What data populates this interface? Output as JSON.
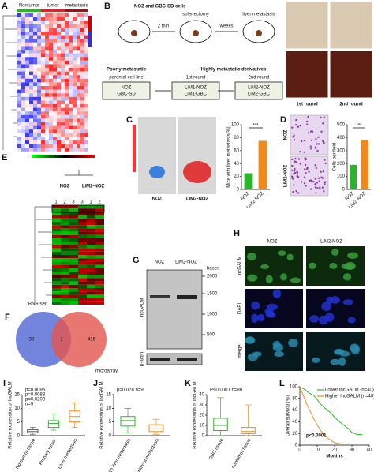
{
  "panels": {
    "A": {
      "label": "A",
      "groups": [
        "Nontumor",
        "tumor",
        "metastasis"
      ]
    },
    "B": {
      "label": "B",
      "cells": "NOZ and GBC-SD cells",
      "step1": "2 min",
      "splenectomy": "splenectomy",
      "step2": "weeks",
      "liver": "liver metastasis",
      "poor": "Poorly metastatic",
      "high": "Highly metastatic derivatives",
      "heads": [
        "parental cell line",
        "1st round",
        "2nd round"
      ],
      "boxes": [
        [
          "NOZ",
          "GBC-SD"
        ],
        [
          "LiM1-NOZ",
          "LiM1-GBC"
        ],
        [
          "LiM2-NOZ",
          "LiM2-GBC"
        ]
      ],
      "photo_labels": [
        "1st round",
        "2nd round"
      ]
    },
    "C": {
      "label": "C",
      "images": [
        "NOZ",
        "LiM2-NOZ"
      ],
      "chart": {
        "type": "bar",
        "ylabel": "Mice with liver metastasis(%)",
        "categories": [
          "NOZ",
          "LiM2-NOZ"
        ],
        "values": [
          25,
          75
        ],
        "colors": [
          "#2bb52b",
          "#f08a1c"
        ],
        "ylim": [
          0,
          100
        ],
        "yticks": [
          0,
          20,
          40,
          60,
          80,
          100
        ],
        "sig": "***"
      }
    },
    "D": {
      "label": "D",
      "images": [
        "NOZ",
        "LiM2-NOZ"
      ],
      "chart": {
        "type": "bar",
        "ylabel": "Cells per field",
        "categories": [
          "NOZ",
          "LiM2-NOZ"
        ],
        "values": [
          190,
          380
        ],
        "colors": [
          "#2bb52b",
          "#f08a1c"
        ],
        "ylim": [
          0,
          500
        ],
        "yticks": [
          0,
          100,
          200,
          300,
          400,
          500
        ],
        "sig": "***"
      }
    },
    "E": {
      "label": "E",
      "groups": [
        "NOZ",
        "LiM2-NOZ"
      ],
      "columns": [
        "1",
        "2",
        "3",
        "3",
        "1",
        "2"
      ]
    },
    "F": {
      "label": "F",
      "sets": [
        "RNA-seq",
        "microarray"
      ],
      "counts": [
        "30",
        "1",
        "416"
      ]
    },
    "G": {
      "label": "G",
      "lanes": [
        "NOZ",
        "LiM2-NOZ"
      ],
      "unit": "bases",
      "markers": [
        "2000",
        "1500",
        "1000",
        "500"
      ],
      "rows": [
        "lncGALM",
        "β-actin"
      ]
    },
    "H": {
      "label": "H",
      "columns": [
        "NOZ",
        "LiM2-NOZ"
      ],
      "rows": [
        "lncGALM",
        "DAPI",
        "merge"
      ]
    },
    "I": {
      "label": "I",
      "chart": {
        "type": "box",
        "ylabel": "Relative expression of lncGALM",
        "categories": [
          "Nontumor tissue",
          "Primary tumor",
          "Liver metastasis"
        ],
        "colors": [
          "#555555",
          "#2bb52b",
          "#f08a1c"
        ],
        "boxes": [
          [
            0.5,
            1,
            1.5,
            2.2,
            3
          ],
          [
            2,
            3,
            4.5,
            5.5,
            8
          ],
          [
            3,
            5,
            7,
            9,
            12
          ]
        ],
        "ylim": [
          0,
          15
        ],
        "yticks": [
          0,
          5,
          10,
          15
        ],
        "notes": [
          "p=0.0096",
          "p=0.0083",
          "p=0.0209",
          "n=9"
        ]
      }
    },
    "J": {
      "label": "J",
      "chart": {
        "type": "box",
        "ylabel": "Relative expression of lncGALM",
        "categories": [
          "GBC with liver metastasis",
          "GBC without metastasis"
        ],
        "colors": [
          "#2bb52b",
          "#f08a1c"
        ],
        "boxes": [
          [
            1,
            3.5,
            5.5,
            7,
            10
          ],
          [
            0.5,
            1.5,
            2.5,
            4,
            6
          ]
        ],
        "ylim": [
          0,
          15
        ],
        "yticks": [
          0,
          5,
          10,
          15
        ],
        "notes": [
          "p=0.028 n=9"
        ]
      }
    },
    "K": {
      "label": "K",
      "chart": {
        "type": "box",
        "ylabel": "Relative expression of lncGALM",
        "categories": [
          "GBC tissue",
          "nontumor tissue"
        ],
        "colors": [
          "#2bb52b",
          "#f08a1c"
        ],
        "boxes": [
          [
            0,
            5,
            10,
            17,
            37
          ],
          [
            0,
            2,
            4,
            8,
            30
          ]
        ],
        "ylim": [
          0,
          40
        ],
        "yticks": [
          0,
          10,
          20,
          30,
          40
        ],
        "notes": [
          "P<0.0001 n=80"
        ]
      }
    },
    "L": {
      "label": "L",
      "chart": {
        "type": "line",
        "ylabel": "Overall survival (%)",
        "xlabel": "Months",
        "xlim": [
          0,
          40
        ],
        "xticks": [
          0,
          10,
          20,
          30,
          40
        ],
        "ylim": [
          0,
          100
        ],
        "yticks": [
          0,
          20,
          40,
          60,
          80,
          100
        ],
        "note": "p<0.0001",
        "series": [
          {
            "name": "Lower lncGALM (n=40)",
            "color": "#2bb52b",
            "x": [
              0,
              3,
              5,
              8,
              10,
              12,
              15,
              18,
              20,
              22,
              25,
              28,
              30,
              33,
              36
            ],
            "values": [
              100,
              95,
              90,
              85,
              78,
              70,
              62,
              55,
              48,
              42,
              35,
              28,
              22,
              18,
              18
            ]
          },
          {
            "name": "Higher lncGALM (n=40)",
            "color": "#f08a1c",
            "x": [
              0,
              2,
              4,
              6,
              8,
              10,
              12,
              14,
              16,
              18,
              20,
              24
            ],
            "values": [
              100,
              85,
              70,
              58,
              45,
              35,
              25,
              18,
              12,
              8,
              4,
              2
            ]
          }
        ]
      }
    }
  }
}
